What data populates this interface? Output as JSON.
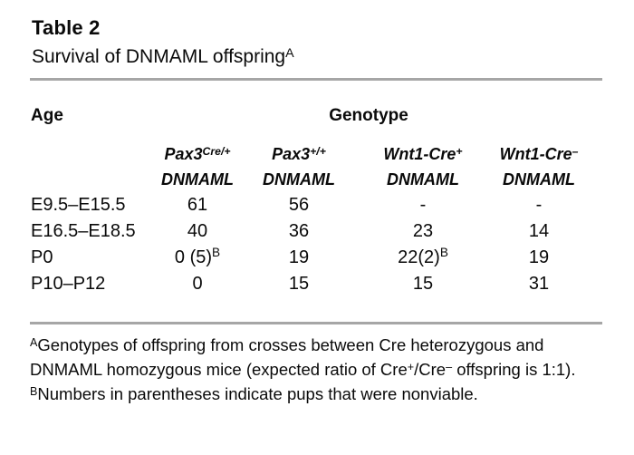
{
  "title": "Table 2",
  "subtitle": {
    "text": "Survival of DNMAML offspring",
    "sup": "A"
  },
  "table": {
    "age_header": "Age",
    "genotype_header": "Genotype",
    "columns": [
      {
        "base": "Pax3",
        "sup": "Cre/+",
        "line2": "DNMAML"
      },
      {
        "base": "Pax3",
        "sup": "+/+",
        "line2": "DNMAML"
      },
      {
        "base": "Wnt1-Cre",
        "sup": "+",
        "line2": "DNMAML"
      },
      {
        "base": "Wnt1-Cre",
        "sup": "–",
        "line2": "DNMAML"
      }
    ],
    "rows": [
      {
        "age": "E9.5–E15.5",
        "values": [
          {
            "text": "61",
            "sup": ""
          },
          {
            "text": "56",
            "sup": ""
          },
          {
            "text": "-",
            "sup": ""
          },
          {
            "text": "-",
            "sup": ""
          }
        ]
      },
      {
        "age": "E16.5–E18.5",
        "values": [
          {
            "text": "40",
            "sup": ""
          },
          {
            "text": "36",
            "sup": ""
          },
          {
            "text": "23",
            "sup": ""
          },
          {
            "text": "14",
            "sup": ""
          }
        ]
      },
      {
        "age": "P0",
        "values": [
          {
            "text": "0 (5)",
            "sup": "B"
          },
          {
            "text": "19",
            "sup": ""
          },
          {
            "text": "22(2)",
            "sup": "B"
          },
          {
            "text": "19",
            "sup": ""
          }
        ]
      },
      {
        "age": "P10–P12",
        "values": [
          {
            "text": "0",
            "sup": ""
          },
          {
            "text": "15",
            "sup": ""
          },
          {
            "text": "15",
            "sup": ""
          },
          {
            "text": "31",
            "sup": ""
          }
        ]
      }
    ]
  },
  "footnotes": {
    "a_sup": "A",
    "a_line1": "Genotypes of offspring from crosses between Cre heterozygous and",
    "a_line2_pre": "DNMAML homozygous mice (expected ratio of Cre",
    "a_line2_sup1": "+",
    "a_line2_mid": "/Cre",
    "a_line2_sup2": "–",
    "a_line2_post": " offspring is 1:1).",
    "b_sup": "B",
    "b_text": "Numbers in parentheses indicate pups that were nonviable."
  },
  "colors": {
    "rule": "#a6a6a6",
    "text": "#0a0a0a",
    "background": "#ffffff"
  }
}
